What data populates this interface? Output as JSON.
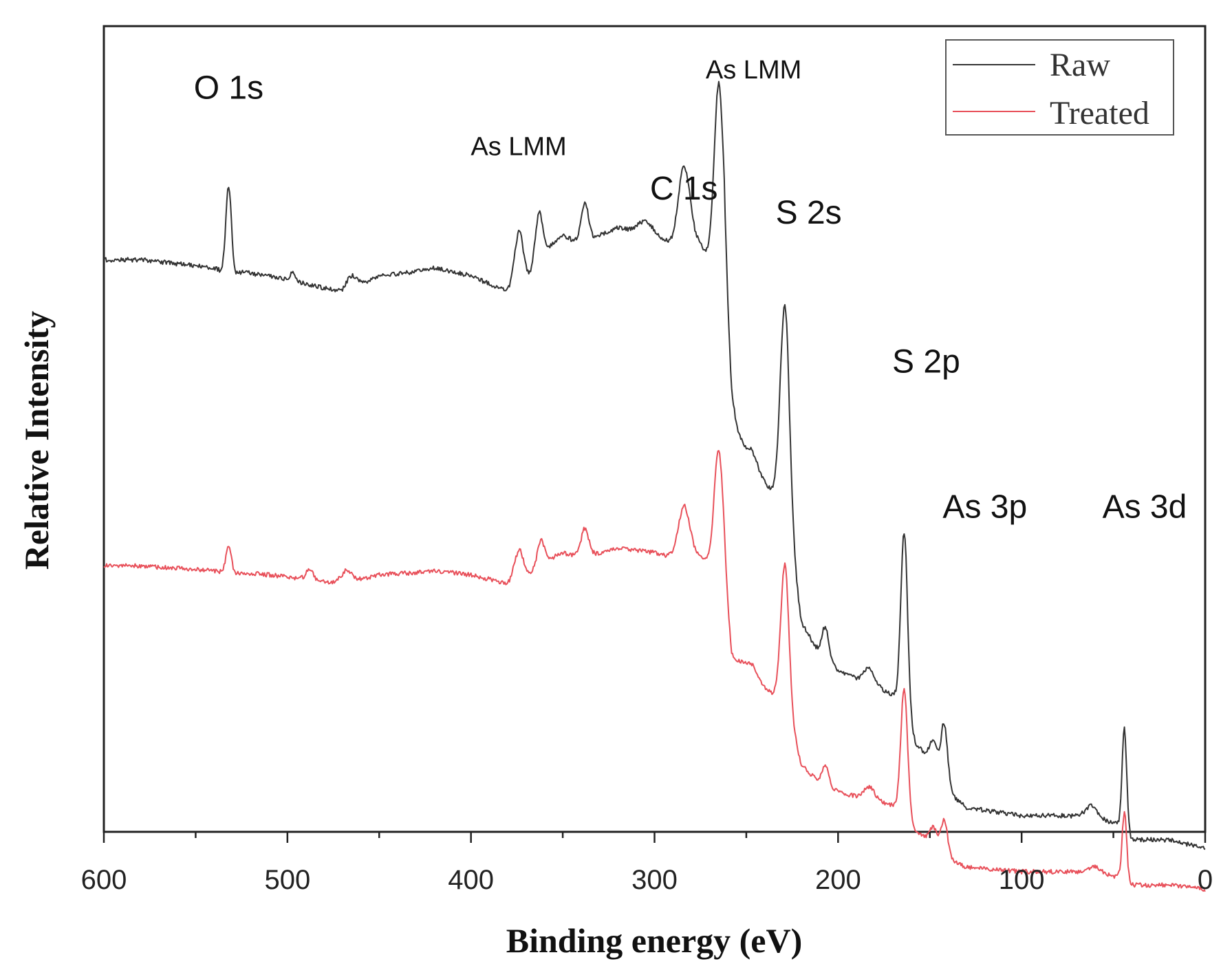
{
  "chart_data": {
    "type": "line",
    "title": "",
    "xlabel": "Binding energy (eV)",
    "ylabel": "Relative Intensity",
    "xlim": [
      600,
      0
    ],
    "ylim": [
      0,
      100
    ],
    "x_reversed": true,
    "xticks": [
      600,
      500,
      400,
      300,
      200,
      100,
      0
    ],
    "xtick_labels": [
      "600",
      "500",
      "400",
      "300",
      "200",
      "100",
      "0"
    ],
    "grid": false,
    "legend": {
      "position": "top-right",
      "entries": [
        "Raw",
        "Treated"
      ]
    },
    "background_line": {
      "x": [
        600,
        580,
        560,
        540,
        530,
        525,
        510,
        490,
        470,
        460,
        450,
        430,
        420,
        400,
        390,
        380,
        375,
        370,
        360,
        350,
        340,
        320,
        300,
        290,
        280,
        275,
        270,
        265,
        262,
        258,
        250,
        240,
        235,
        228,
        220,
        210,
        200,
        190,
        180,
        170,
        163,
        158,
        150,
        143,
        140,
        130,
        100,
        80,
        60,
        50,
        44,
        40,
        20,
        0
      ],
      "y": [
        0,
        0,
        0.5,
        1,
        2,
        1.5,
        2,
        3,
        4,
        3,
        2,
        1.5,
        1,
        2,
        3,
        4,
        5,
        3,
        -1,
        -3,
        -2,
        -4,
        -3,
        -2,
        -3,
        -2,
        0,
        3,
        5,
        20,
        26,
        28,
        29,
        31,
        45,
        49,
        51,
        52,
        53,
        54,
        55,
        60,
        62,
        64,
        66,
        68,
        69,
        69,
        69,
        70,
        70,
        72,
        72,
        73
      ]
    },
    "series": [
      {
        "name": "Raw",
        "color": "#333333",
        "offset": 71,
        "peaks": [
          {
            "x": 532,
            "h": 11,
            "w": 1.5
          },
          {
            "x": 497,
            "h": 1.2,
            "w": 1.5
          },
          {
            "x": 465,
            "h": 1.5,
            "w": 3
          },
          {
            "x": 374,
            "h": 8,
            "w": 2.5
          },
          {
            "x": 363,
            "h": 6,
            "w": 2
          },
          {
            "x": 338,
            "h": 5,
            "w": 2
          },
          {
            "x": 305,
            "h": 1.5,
            "w": 4
          },
          {
            "x": 284,
            "h": 9,
            "w": 3
          },
          {
            "x": 265,
            "h": 24,
            "w": 2.5
          },
          {
            "x": 260,
            "h": 4,
            "w": 3
          },
          {
            "x": 248,
            "h": 3,
            "w": 4
          },
          {
            "x": 229,
            "h": 25,
            "w": 2.5
          },
          {
            "x": 207,
            "h": 4,
            "w": 2
          },
          {
            "x": 183,
            "h": 2,
            "w": 3
          },
          {
            "x": 164,
            "h": 21,
            "w": 1.8
          },
          {
            "x": 148,
            "h": 3,
            "w": 2
          },
          {
            "x": 142,
            "h": 7,
            "w": 1.8
          },
          {
            "x": 62,
            "h": 1.2,
            "w": 3
          },
          {
            "x": 44,
            "h": 12,
            "w": 1.2
          }
        ]
      },
      {
        "name": "Treated",
        "color": "#e8505a",
        "offset": 33,
        "peaks": [
          {
            "x": 532,
            "h": 3.5,
            "w": 1.5
          },
          {
            "x": 488,
            "h": 1.2,
            "w": 2
          },
          {
            "x": 468,
            "h": 1.5,
            "w": 3
          },
          {
            "x": 374,
            "h": 4.5,
            "w": 2.5
          },
          {
            "x": 362,
            "h": 3,
            "w": 2
          },
          {
            "x": 338,
            "h": 3.5,
            "w": 2
          },
          {
            "x": 284,
            "h": 6,
            "w": 3
          },
          {
            "x": 265,
            "h": 16,
            "w": 2.5
          },
          {
            "x": 248,
            "h": 2.5,
            "w": 4
          },
          {
            "x": 229,
            "h": 17,
            "w": 2.2
          },
          {
            "x": 207,
            "h": 2.5,
            "w": 2
          },
          {
            "x": 183,
            "h": 1.5,
            "w": 3
          },
          {
            "x": 164,
            "h": 15,
            "w": 1.8
          },
          {
            "x": 148,
            "h": 2,
            "w": 2
          },
          {
            "x": 142,
            "h": 4,
            "w": 1.8
          },
          {
            "x": 60,
            "h": 0.6,
            "w": 3
          },
          {
            "x": 44,
            "h": 8,
            "w": 1.2
          }
        ]
      }
    ],
    "annotations": [
      {
        "text": "O 1s",
        "x": 532,
        "y": 91,
        "size": "large"
      },
      {
        "text": "As LMM",
        "x": 374,
        "y": 84,
        "size": "small"
      },
      {
        "text": "As LMM",
        "x": 246,
        "y": 93.5,
        "size": "small"
      },
      {
        "text": "C 1s",
        "x": 284,
        "y": 78.5,
        "size": "large"
      },
      {
        "text": "S 2s",
        "x": 216,
        "y": 75.5,
        "size": "large"
      },
      {
        "text": "S 2p",
        "x": 152,
        "y": 57,
        "size": "large"
      },
      {
        "text": "As 3p",
        "x": 120,
        "y": 39,
        "size": "large"
      },
      {
        "text": "As 3d",
        "x": 33,
        "y": 39,
        "size": "large"
      }
    ]
  }
}
